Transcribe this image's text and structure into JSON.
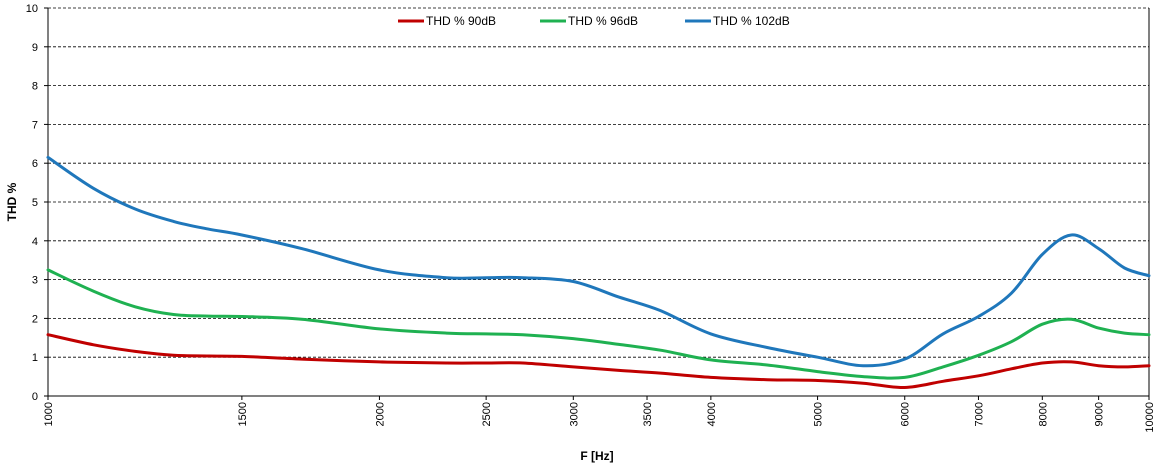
{
  "chart_data": {
    "type": "line",
    "xlabel": "F [Hz]",
    "ylabel": "THD %",
    "xscale": "log",
    "xlim": [
      1000,
      10000
    ],
    "ylim": [
      0,
      10
    ],
    "grid": "horizontal dashed",
    "legend_position": "top",
    "x_ticks": [
      "1000",
      "1500",
      "2000",
      "2500",
      "3000",
      "3500",
      "4000",
      "5000",
      "6000",
      "7000",
      "8000",
      "9000",
      "10000"
    ],
    "y_ticks": [
      "0",
      "1",
      "2",
      "3",
      "4",
      "5",
      "6",
      "7",
      "8",
      "9",
      "10"
    ],
    "x": [
      1000,
      1100,
      1200,
      1300,
      1400,
      1500,
      1700,
      2000,
      2300,
      2500,
      2700,
      3000,
      3300,
      3600,
      4000,
      4500,
      5000,
      5500,
      6000,
      6500,
      7000,
      7500,
      8000,
      8500,
      9000,
      9500,
      10000
    ],
    "series": [
      {
        "name": "THD % 90dB",
        "color": "#c00000",
        "values": [
          1.58,
          1.32,
          1.15,
          1.05,
          1.03,
          1.02,
          0.95,
          0.88,
          0.85,
          0.85,
          0.85,
          0.75,
          0.66,
          0.59,
          0.48,
          0.42,
          0.4,
          0.33,
          0.22,
          0.38,
          0.52,
          0.7,
          0.85,
          0.88,
          0.78,
          0.75,
          0.78
        ]
      },
      {
        "name": "THD % 96dB",
        "color": "#1fb151",
        "values": [
          3.25,
          2.7,
          2.3,
          2.1,
          2.06,
          2.05,
          1.98,
          1.73,
          1.62,
          1.6,
          1.58,
          1.48,
          1.33,
          1.18,
          0.93,
          0.8,
          0.63,
          0.5,
          0.48,
          0.75,
          1.05,
          1.4,
          1.85,
          1.98,
          1.75,
          1.62,
          1.58
        ]
      },
      {
        "name": "THD % 102dB",
        "color": "#1f77bb",
        "values": [
          6.15,
          5.35,
          4.82,
          4.5,
          4.3,
          4.15,
          3.8,
          3.25,
          3.05,
          3.05,
          3.05,
          2.95,
          2.55,
          2.2,
          1.6,
          1.25,
          1.0,
          0.78,
          0.95,
          1.6,
          2.05,
          2.65,
          3.65,
          4.15,
          3.8,
          3.3,
          3.1
        ]
      }
    ]
  }
}
